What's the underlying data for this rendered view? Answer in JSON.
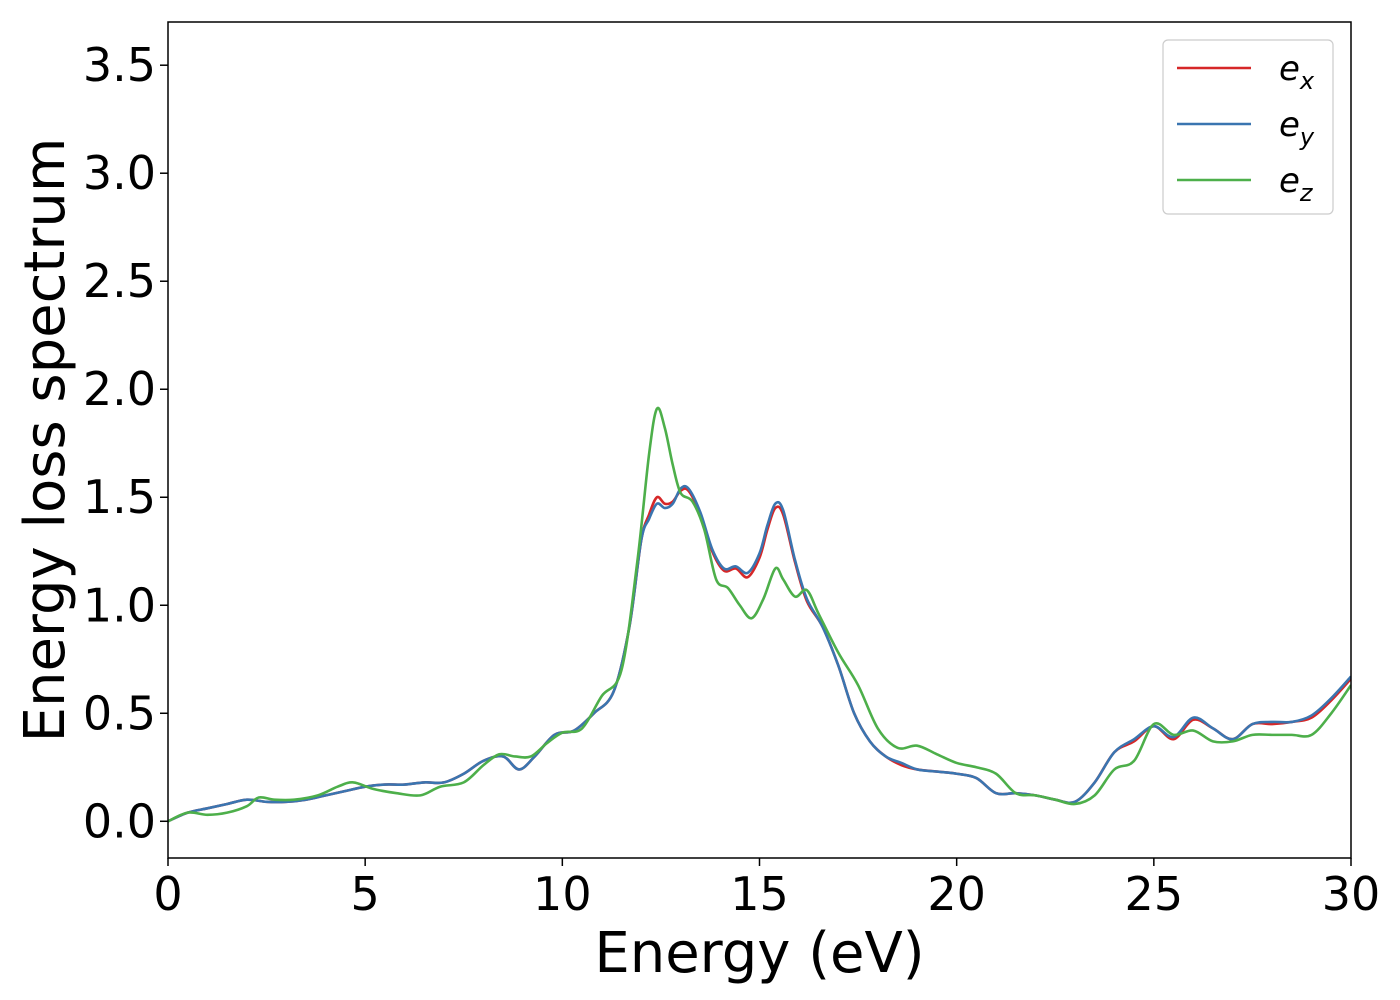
{
  "chart_data": {
    "type": "line",
    "title": "",
    "xlabel": "Energy (eV)",
    "ylabel": "Energy loss spectrum",
    "xlim": [
      0,
      30
    ],
    "ylim": [
      -0.17,
      3.7
    ],
    "xticks": [
      0,
      5,
      10,
      15,
      20,
      25,
      30
    ],
    "xtick_labels": [
      "0",
      "5",
      "10",
      "15",
      "20",
      "25",
      "30"
    ],
    "yticks": [
      0.0,
      0.5,
      1.0,
      1.5,
      2.0,
      2.5,
      3.0,
      3.5
    ],
    "ytick_labels": [
      "0.0",
      "0.5",
      "1.0",
      "1.5",
      "2.0",
      "2.5",
      "3.0",
      "3.5"
    ],
    "grid": false,
    "legend_position": "top-right",
    "series": [
      {
        "name": "e_x",
        "label_main": "e",
        "label_sub": "x",
        "color": "#d62728",
        "x": [
          0,
          0.5,
          1.0,
          1.5,
          2.0,
          2.5,
          3.0,
          3.5,
          4.0,
          4.5,
          5.0,
          5.5,
          6.0,
          6.5,
          7.0,
          7.5,
          8.0,
          8.5,
          8.9,
          9.3,
          9.8,
          10.3,
          10.8,
          11.3,
          11.7,
          12.0,
          12.2,
          12.4,
          12.6,
          12.8,
          13.0,
          13.2,
          13.5,
          13.8,
          14.1,
          14.4,
          14.7,
          15.0,
          15.2,
          15.4,
          15.6,
          15.9,
          16.2,
          16.6,
          17.0,
          17.4,
          17.8,
          18.2,
          18.6,
          19.0,
          19.5,
          20.0,
          20.5,
          21.0,
          21.5,
          22.0,
          22.5,
          23.0,
          23.5,
          24.0,
          24.5,
          25.0,
          25.5,
          26.0,
          26.5,
          27.0,
          27.5,
          28.0,
          28.5,
          29.0,
          29.5,
          30.0
        ],
        "y": [
          0.0,
          0.04,
          0.06,
          0.08,
          0.1,
          0.09,
          0.09,
          0.1,
          0.12,
          0.14,
          0.16,
          0.17,
          0.17,
          0.18,
          0.18,
          0.22,
          0.28,
          0.3,
          0.24,
          0.3,
          0.4,
          0.42,
          0.5,
          0.6,
          0.9,
          1.3,
          1.42,
          1.5,
          1.47,
          1.48,
          1.53,
          1.53,
          1.42,
          1.25,
          1.16,
          1.17,
          1.13,
          1.22,
          1.35,
          1.45,
          1.42,
          1.2,
          1.02,
          0.9,
          0.72,
          0.5,
          0.37,
          0.3,
          0.26,
          0.24,
          0.23,
          0.22,
          0.2,
          0.13,
          0.13,
          0.12,
          0.1,
          0.09,
          0.18,
          0.32,
          0.37,
          0.44,
          0.38,
          0.47,
          0.43,
          0.38,
          0.45,
          0.45,
          0.46,
          0.48,
          0.56,
          0.66
        ]
      },
      {
        "name": "e_y",
        "label_main": "e",
        "label_sub": "y",
        "color": "#3a75b0",
        "x": [
          0,
          0.5,
          1.0,
          1.5,
          2.0,
          2.5,
          3.0,
          3.5,
          4.0,
          4.5,
          5.0,
          5.5,
          6.0,
          6.5,
          7.0,
          7.5,
          8.0,
          8.5,
          8.9,
          9.3,
          9.8,
          10.3,
          10.8,
          11.3,
          11.7,
          12.0,
          12.2,
          12.4,
          12.6,
          12.8,
          13.0,
          13.2,
          13.5,
          13.8,
          14.1,
          14.4,
          14.7,
          15.0,
          15.2,
          15.4,
          15.6,
          15.9,
          16.2,
          16.6,
          17.0,
          17.4,
          17.8,
          18.2,
          18.6,
          19.0,
          19.5,
          20.0,
          20.5,
          21.0,
          21.5,
          22.0,
          22.5,
          23.0,
          23.5,
          24.0,
          24.5,
          25.0,
          25.5,
          26.0,
          26.5,
          27.0,
          27.5,
          28.0,
          28.5,
          29.0,
          29.5,
          30.0
        ],
        "y": [
          0.0,
          0.04,
          0.06,
          0.08,
          0.1,
          0.09,
          0.09,
          0.1,
          0.12,
          0.14,
          0.16,
          0.17,
          0.17,
          0.18,
          0.18,
          0.22,
          0.28,
          0.3,
          0.24,
          0.3,
          0.4,
          0.42,
          0.5,
          0.6,
          0.9,
          1.3,
          1.4,
          1.47,
          1.45,
          1.47,
          1.54,
          1.54,
          1.43,
          1.26,
          1.17,
          1.18,
          1.15,
          1.24,
          1.37,
          1.47,
          1.44,
          1.21,
          1.03,
          0.9,
          0.72,
          0.5,
          0.37,
          0.3,
          0.27,
          0.24,
          0.23,
          0.22,
          0.2,
          0.13,
          0.13,
          0.12,
          0.1,
          0.09,
          0.18,
          0.32,
          0.38,
          0.44,
          0.39,
          0.48,
          0.43,
          0.38,
          0.45,
          0.46,
          0.46,
          0.49,
          0.57,
          0.67
        ]
      },
      {
        "name": "e_z",
        "label_main": "e",
        "label_sub": "z",
        "color": "#4daf4a",
        "x": [
          0,
          0.5,
          1.0,
          1.5,
          2.0,
          2.3,
          2.7,
          3.2,
          3.8,
          4.3,
          4.7,
          5.2,
          5.8,
          6.4,
          6.9,
          7.5,
          8.0,
          8.4,
          8.8,
          9.2,
          9.6,
          10.0,
          10.5,
          11.0,
          11.5,
          11.9,
          12.2,
          12.4,
          12.6,
          12.8,
          13.0,
          13.3,
          13.6,
          13.9,
          14.2,
          14.5,
          14.8,
          15.1,
          15.4,
          15.6,
          15.9,
          16.2,
          16.5,
          17.0,
          17.5,
          18.0,
          18.5,
          19.0,
          19.5,
          20.0,
          20.5,
          21.0,
          21.5,
          22.0,
          22.5,
          23.0,
          23.5,
          24.0,
          24.5,
          25.0,
          25.5,
          26.0,
          26.5,
          27.0,
          27.5,
          28.0,
          28.5,
          29.0,
          29.5,
          30.0
        ],
        "y": [
          0.0,
          0.04,
          0.03,
          0.04,
          0.07,
          0.11,
          0.1,
          0.1,
          0.12,
          0.16,
          0.18,
          0.15,
          0.13,
          0.12,
          0.16,
          0.18,
          0.26,
          0.31,
          0.3,
          0.3,
          0.36,
          0.41,
          0.43,
          0.58,
          0.7,
          1.2,
          1.7,
          1.91,
          1.82,
          1.65,
          1.52,
          1.48,
          1.35,
          1.12,
          1.08,
          1.0,
          0.94,
          1.03,
          1.17,
          1.12,
          1.04,
          1.07,
          0.96,
          0.78,
          0.63,
          0.43,
          0.34,
          0.35,
          0.31,
          0.27,
          0.25,
          0.22,
          0.13,
          0.12,
          0.1,
          0.08,
          0.12,
          0.24,
          0.28,
          0.45,
          0.4,
          0.42,
          0.37,
          0.37,
          0.4,
          0.4,
          0.4,
          0.4,
          0.5,
          0.63
        ]
      }
    ]
  }
}
